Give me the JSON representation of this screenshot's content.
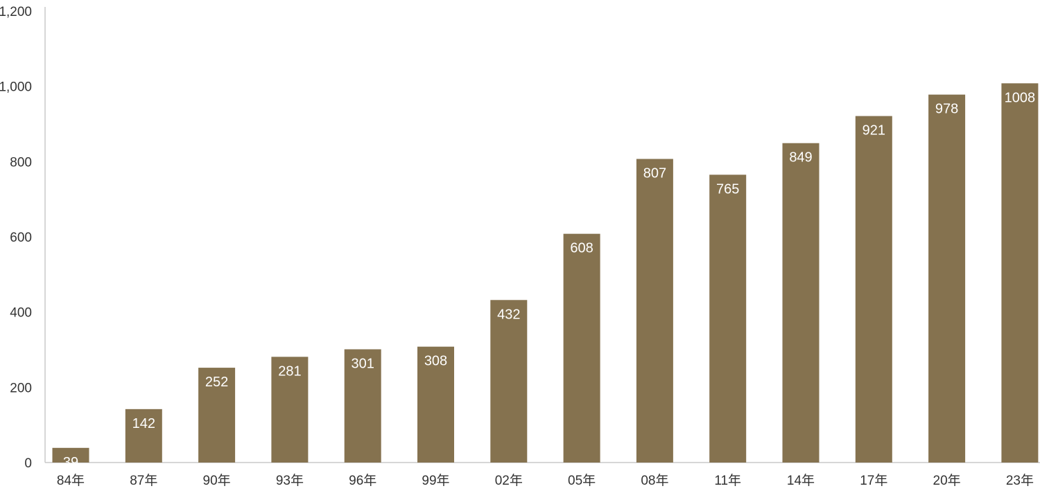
{
  "chart_data": {
    "type": "bar",
    "categories": [
      "84年",
      "87年",
      "90年",
      "93年",
      "96年",
      "99年",
      "02年",
      "05年",
      "08年",
      "11年",
      "14年",
      "17年",
      "20年",
      "23年"
    ],
    "values": [
      39,
      142,
      252,
      281,
      301,
      308,
      432,
      608,
      807,
      765,
      849,
      921,
      978,
      1008
    ],
    "data_labels": [
      "39",
      "142",
      "252",
      "281",
      "301",
      "308",
      "432",
      "608",
      "807",
      "765",
      "849",
      "921",
      "978",
      "1008"
    ],
    "y_ticks": [
      0,
      200,
      400,
      600,
      800,
      1000,
      1200
    ],
    "y_tick_labels": [
      "0",
      "200",
      "400",
      "600",
      "800",
      "1,000",
      "1,200"
    ],
    "ylim": [
      0,
      1200
    ],
    "grid": false,
    "legend": "none",
    "bar_color": "#85724f",
    "label_color": "#ffffff"
  }
}
